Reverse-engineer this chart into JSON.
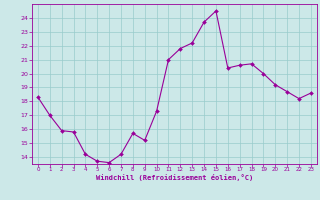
{
  "x": [
    0,
    1,
    2,
    3,
    4,
    5,
    6,
    7,
    8,
    9,
    10,
    11,
    12,
    13,
    14,
    15,
    16,
    17,
    18,
    19,
    20,
    21,
    22,
    23
  ],
  "y": [
    18.3,
    17.0,
    15.9,
    15.8,
    14.2,
    13.7,
    13.6,
    14.2,
    15.7,
    15.2,
    17.3,
    21.0,
    21.8,
    22.2,
    23.7,
    24.5,
    20.4,
    20.6,
    20.7,
    20.0,
    19.2,
    18.7,
    18.2,
    18.6
  ],
  "line_color": "#990099",
  "marker": "D",
  "marker_size": 2,
  "background_color": "#cce8e8",
  "grid_color": "#99cccc",
  "xlabel": "Windchill (Refroidissement éolien,°C)",
  "xlabel_color": "#990099",
  "tick_color": "#990099",
  "ylim": [
    13.5,
    25.0
  ],
  "xlim": [
    -0.5,
    23.5
  ],
  "yticks": [
    14,
    15,
    16,
    17,
    18,
    19,
    20,
    21,
    22,
    23,
    24
  ],
  "xticks": [
    0,
    1,
    2,
    3,
    4,
    5,
    6,
    7,
    8,
    9,
    10,
    11,
    12,
    13,
    14,
    15,
    16,
    17,
    18,
    19,
    20,
    21,
    22,
    23
  ],
  "xtick_labels": [
    "0",
    "1",
    "2",
    "3",
    "4",
    "5",
    "6",
    "7",
    "8",
    "9",
    "10",
    "11",
    "12",
    "13",
    "14",
    "15",
    "16",
    "17",
    "18",
    "19",
    "20",
    "21",
    "22",
    "23"
  ],
  "ytick_labels": [
    "14",
    "15",
    "16",
    "17",
    "18",
    "19",
    "20",
    "21",
    "22",
    "23",
    "24"
  ],
  "spine_color": "#990099",
  "linewidth": 0.8
}
